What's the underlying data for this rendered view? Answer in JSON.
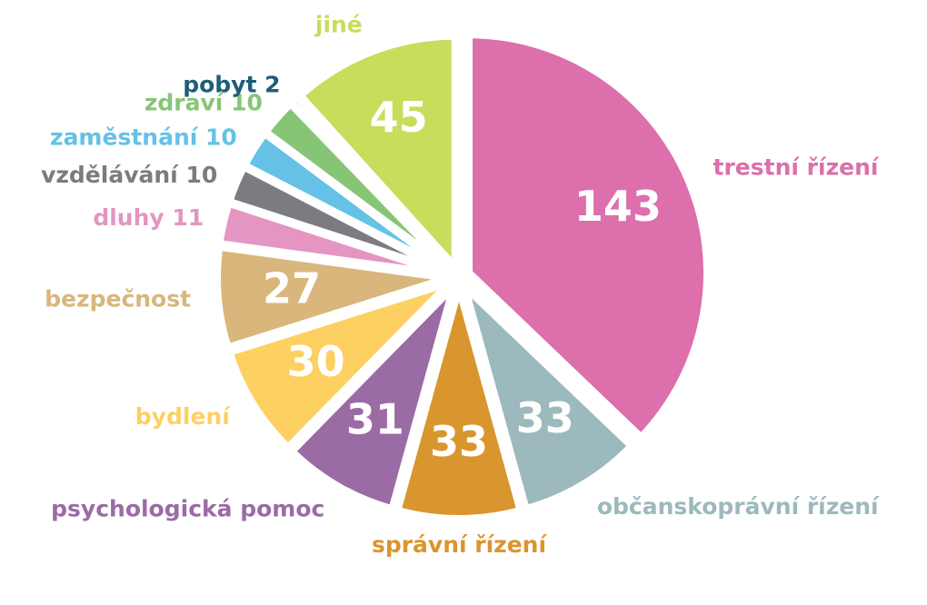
{
  "chart_data": {
    "type": "pie",
    "categories": [
      "trestní řízení",
      "občanskoprávní řízení",
      "správní řízení",
      "psychologická pomoc",
      "bydlení",
      "bezpečnost",
      "dluhy",
      "vzdělávání",
      "zaměstnání",
      "zdraví",
      "pobyt",
      "jiné"
    ],
    "values": [
      143,
      33,
      33,
      31,
      30,
      27,
      11,
      10,
      10,
      10,
      2,
      45
    ],
    "colors": [
      "#dc6fac",
      "#9cb9bd",
      "#d9962e",
      "#9b6ba6",
      "#fdd062",
      "#d9b67c",
      "#e495c2",
      "#7b7c80",
      "#65c2e6",
      "#86c576",
      "#1d5d78",
      "#c9dc5c"
    ]
  }
}
